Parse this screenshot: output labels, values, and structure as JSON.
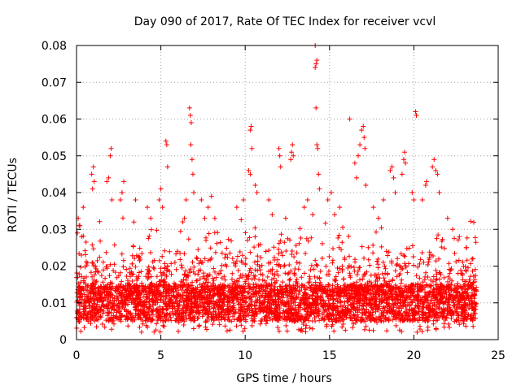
{
  "chart_data": {
    "type": "scatter",
    "title": "Day 090 of 2017, Rate Of TEC Index for receiver vcvl",
    "xlabel": "GPS time / hours",
    "ylabel": "ROTI / TECUs",
    "xlim": [
      0,
      25
    ],
    "ylim": [
      0,
      0.08
    ],
    "x_ticks": [
      0,
      5,
      10,
      15,
      20,
      25
    ],
    "y_ticks": [
      0,
      0.01,
      0.02,
      0.03,
      0.04,
      0.05,
      0.06,
      0.07,
      0.08
    ],
    "x_tick_labels": [
      "0",
      "5",
      "10",
      "15",
      "20",
      "25"
    ],
    "y_tick_labels": [
      "0",
      "0.01",
      "0.02",
      "0.03",
      "0.04",
      "0.05",
      "0.06",
      "0.07",
      "0.08"
    ],
    "grid": true,
    "marker": "+",
    "marker_color": "#ff0000",
    "series": [
      {
        "name": "ROTI",
        "base_band": [
          0.005,
          0.015
        ],
        "time_range": [
          0,
          23.7
        ],
        "points": [
          [
            0.05,
            0.029
          ],
          [
            0.1,
            0.033
          ],
          [
            0.2,
            0.031
          ],
          [
            0.3,
            0.028
          ],
          [
            0.4,
            0.036
          ],
          [
            0.9,
            0.045
          ],
          [
            0.95,
            0.041
          ],
          [
            1.0,
            0.047
          ],
          [
            1.05,
            0.043
          ],
          [
            1.8,
            0.043
          ],
          [
            1.9,
            0.044
          ],
          [
            2.0,
            0.05
          ],
          [
            2.05,
            0.052
          ],
          [
            2.1,
            0.038
          ],
          [
            2.6,
            0.038
          ],
          [
            2.7,
            0.04
          ],
          [
            2.8,
            0.043
          ],
          [
            3.4,
            0.032
          ],
          [
            3.5,
            0.038
          ],
          [
            4.2,
            0.036
          ],
          [
            4.4,
            0.033
          ],
          [
            4.9,
            0.038
          ],
          [
            5.0,
            0.041
          ],
          [
            5.1,
            0.036
          ],
          [
            5.3,
            0.054
          ],
          [
            5.35,
            0.053
          ],
          [
            5.4,
            0.047
          ],
          [
            6.4,
            0.033
          ],
          [
            6.5,
            0.038
          ],
          [
            6.7,
            0.063
          ],
          [
            6.75,
            0.061
          ],
          [
            6.8,
            0.059
          ],
          [
            6.78,
            0.053
          ],
          [
            6.85,
            0.049
          ],
          [
            6.9,
            0.045
          ],
          [
            6.95,
            0.04
          ],
          [
            7.4,
            0.038
          ],
          [
            7.6,
            0.033
          ],
          [
            7.8,
            0.036
          ],
          [
            8.0,
            0.039
          ],
          [
            8.2,
            0.033
          ],
          [
            9.5,
            0.036
          ],
          [
            9.9,
            0.038
          ],
          [
            10.2,
            0.046
          ],
          [
            10.3,
            0.045
          ],
          [
            10.3,
            0.057
          ],
          [
            10.35,
            0.058
          ],
          [
            10.4,
            0.052
          ],
          [
            10.6,
            0.042
          ],
          [
            10.7,
            0.04
          ],
          [
            11.4,
            0.038
          ],
          [
            11.6,
            0.034
          ],
          [
            12.0,
            0.052
          ],
          [
            12.05,
            0.05
          ],
          [
            12.1,
            0.047
          ],
          [
            12.4,
            0.033
          ],
          [
            12.7,
            0.049
          ],
          [
            12.75,
            0.051
          ],
          [
            12.8,
            0.053
          ],
          [
            12.85,
            0.05
          ],
          [
            13.5,
            0.036
          ],
          [
            13.7,
            0.038
          ],
          [
            14.0,
            0.034
          ],
          [
            14.15,
            0.08
          ],
          [
            14.2,
            0.075
          ],
          [
            14.25,
            0.076
          ],
          [
            14.15,
            0.074
          ],
          [
            14.2,
            0.063
          ],
          [
            14.25,
            0.053
          ],
          [
            14.3,
            0.052
          ],
          [
            14.35,
            0.045
          ],
          [
            14.4,
            0.041
          ],
          [
            14.9,
            0.038
          ],
          [
            15.1,
            0.04
          ],
          [
            15.3,
            0.034
          ],
          [
            15.6,
            0.036
          ],
          [
            16.2,
            0.06
          ],
          [
            16.5,
            0.048
          ],
          [
            16.6,
            0.044
          ],
          [
            16.7,
            0.05
          ],
          [
            16.8,
            0.053
          ],
          [
            16.9,
            0.057
          ],
          [
            17.0,
            0.058
          ],
          [
            17.05,
            0.055
          ],
          [
            17.1,
            0.052
          ],
          [
            17.15,
            0.042
          ],
          [
            17.6,
            0.036
          ],
          [
            17.9,
            0.033
          ],
          [
            18.2,
            0.038
          ],
          [
            18.6,
            0.046
          ],
          [
            18.7,
            0.047
          ],
          [
            18.8,
            0.044
          ],
          [
            18.9,
            0.04
          ],
          [
            19.3,
            0.045
          ],
          [
            19.4,
            0.049
          ],
          [
            19.45,
            0.051
          ],
          [
            19.5,
            0.048
          ],
          [
            19.9,
            0.04
          ],
          [
            20.0,
            0.038
          ],
          [
            20.1,
            0.062
          ],
          [
            20.15,
            0.061
          ],
          [
            20.5,
            0.038
          ],
          [
            20.7,
            0.042
          ],
          [
            20.75,
            0.043
          ],
          [
            21.1,
            0.047
          ],
          [
            21.2,
            0.049
          ],
          [
            21.3,
            0.046
          ],
          [
            21.4,
            0.045
          ],
          [
            21.5,
            0.04
          ],
          [
            22.0,
            0.033
          ],
          [
            22.3,
            0.03
          ],
          [
            22.7,
            0.028
          ],
          [
            23.1,
            0.025
          ],
          [
            23.5,
            0.022
          ]
        ]
      }
    ]
  }
}
